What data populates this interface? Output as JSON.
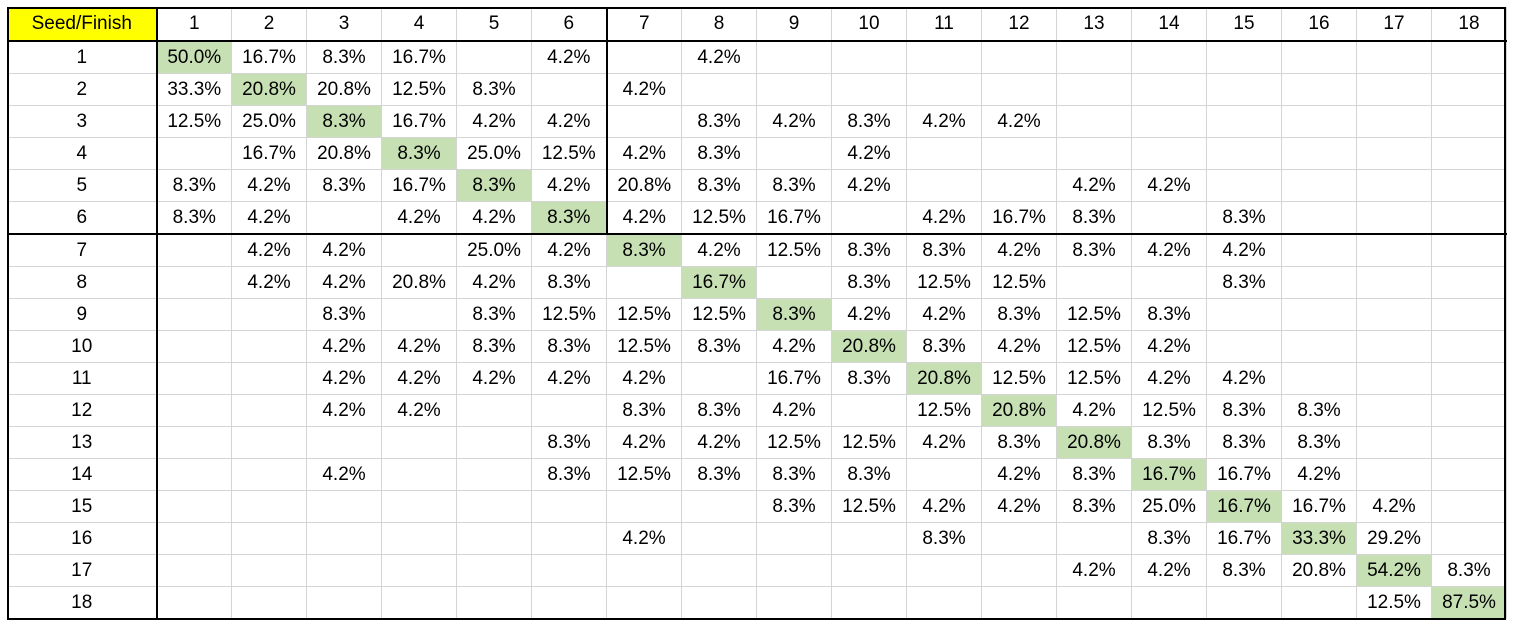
{
  "corner_label": "Seed/Finish",
  "colors": {
    "header_highlight": "#ffff00",
    "diagonal_fill": "#c6e0b4",
    "gridline": "#d4d4d4",
    "border": "#000000"
  },
  "finish_headers": [
    "1",
    "2",
    "3",
    "4",
    "5",
    "6",
    "7",
    "8",
    "9",
    "10",
    "11",
    "12",
    "13",
    "14",
    "15",
    "16",
    "17",
    "18"
  ],
  "rows": [
    {
      "seed": "1",
      "cells": [
        "50.0%",
        "16.7%",
        "8.3%",
        "16.7%",
        "",
        "4.2%",
        "",
        "4.2%",
        "",
        "",
        "",
        "",
        "",
        "",
        "",
        "",
        "",
        ""
      ]
    },
    {
      "seed": "2",
      "cells": [
        "33.3%",
        "20.8%",
        "20.8%",
        "12.5%",
        "8.3%",
        "",
        "4.2%",
        "",
        "",
        "",
        "",
        "",
        "",
        "",
        "",
        "",
        "",
        ""
      ]
    },
    {
      "seed": "3",
      "cells": [
        "12.5%",
        "25.0%",
        "8.3%",
        "16.7%",
        "4.2%",
        "4.2%",
        "",
        "8.3%",
        "4.2%",
        "8.3%",
        "4.2%",
        "4.2%",
        "",
        "",
        "",
        "",
        "",
        ""
      ]
    },
    {
      "seed": "4",
      "cells": [
        "",
        "16.7%",
        "20.8%",
        "8.3%",
        "25.0%",
        "12.5%",
        "4.2%",
        "8.3%",
        "",
        "4.2%",
        "",
        "",
        "",
        "",
        "",
        "",
        "",
        ""
      ]
    },
    {
      "seed": "5",
      "cells": [
        "8.3%",
        "4.2%",
        "8.3%",
        "16.7%",
        "8.3%",
        "4.2%",
        "20.8%",
        "8.3%",
        "8.3%",
        "4.2%",
        "",
        "",
        "4.2%",
        "4.2%",
        "",
        "",
        "",
        ""
      ]
    },
    {
      "seed": "6",
      "cells": [
        "8.3%",
        "4.2%",
        "",
        "4.2%",
        "4.2%",
        "8.3%",
        "4.2%",
        "12.5%",
        "16.7%",
        "",
        "4.2%",
        "16.7%",
        "8.3%",
        "",
        "8.3%",
        "",
        "",
        ""
      ]
    },
    {
      "seed": "7",
      "cells": [
        "",
        "4.2%",
        "4.2%",
        "",
        "25.0%",
        "4.2%",
        "8.3%",
        "4.2%",
        "12.5%",
        "8.3%",
        "8.3%",
        "4.2%",
        "8.3%",
        "4.2%",
        "4.2%",
        "",
        "",
        ""
      ]
    },
    {
      "seed": "8",
      "cells": [
        "",
        "4.2%",
        "4.2%",
        "20.8%",
        "4.2%",
        "8.3%",
        "",
        "16.7%",
        "",
        "8.3%",
        "12.5%",
        "12.5%",
        "",
        "",
        "8.3%",
        "",
        "",
        ""
      ]
    },
    {
      "seed": "9",
      "cells": [
        "",
        "",
        "8.3%",
        "",
        "8.3%",
        "12.5%",
        "12.5%",
        "12.5%",
        "8.3%",
        "4.2%",
        "4.2%",
        "8.3%",
        "12.5%",
        "8.3%",
        "",
        "",
        "",
        ""
      ]
    },
    {
      "seed": "10",
      "cells": [
        "",
        "",
        "4.2%",
        "4.2%",
        "8.3%",
        "8.3%",
        "12.5%",
        "8.3%",
        "4.2%",
        "20.8%",
        "8.3%",
        "4.2%",
        "12.5%",
        "4.2%",
        "",
        "",
        "",
        ""
      ]
    },
    {
      "seed": "11",
      "cells": [
        "",
        "",
        "4.2%",
        "4.2%",
        "4.2%",
        "4.2%",
        "4.2%",
        "",
        "16.7%",
        "8.3%",
        "20.8%",
        "12.5%",
        "12.5%",
        "4.2%",
        "4.2%",
        "",
        "",
        ""
      ]
    },
    {
      "seed": "12",
      "cells": [
        "",
        "",
        "4.2%",
        "4.2%",
        "",
        "",
        "8.3%",
        "8.3%",
        "4.2%",
        "",
        "12.5%",
        "20.8%",
        "4.2%",
        "12.5%",
        "8.3%",
        "8.3%",
        "",
        ""
      ]
    },
    {
      "seed": "13",
      "cells": [
        "",
        "",
        "",
        "",
        "",
        "8.3%",
        "4.2%",
        "4.2%",
        "12.5%",
        "12.5%",
        "4.2%",
        "8.3%",
        "20.8%",
        "8.3%",
        "8.3%",
        "8.3%",
        "",
        ""
      ]
    },
    {
      "seed": "14",
      "cells": [
        "",
        "",
        "4.2%",
        "",
        "",
        "8.3%",
        "12.5%",
        "8.3%",
        "8.3%",
        "8.3%",
        "",
        "4.2%",
        "8.3%",
        "16.7%",
        "16.7%",
        "4.2%",
        "",
        ""
      ]
    },
    {
      "seed": "15",
      "cells": [
        "",
        "",
        "",
        "",
        "",
        "",
        "",
        "",
        "8.3%",
        "12.5%",
        "4.2%",
        "4.2%",
        "8.3%",
        "25.0%",
        "16.7%",
        "16.7%",
        "4.2%",
        ""
      ]
    },
    {
      "seed": "16",
      "cells": [
        "",
        "",
        "",
        "",
        "",
        "",
        "4.2%",
        "",
        "",
        "",
        "8.3%",
        "",
        "",
        "8.3%",
        "16.7%",
        "33.3%",
        "29.2%",
        ""
      ]
    },
    {
      "seed": "17",
      "cells": [
        "",
        "",
        "",
        "",
        "",
        "",
        "",
        "",
        "",
        "",
        "",
        "",
        "4.2%",
        "4.2%",
        "8.3%",
        "20.8%",
        "54.2%",
        "8.3%"
      ]
    },
    {
      "seed": "18",
      "cells": [
        "",
        "",
        "",
        "",
        "",
        "",
        "",
        "",
        "",
        "",
        "",
        "",
        "",
        "",
        "",
        "",
        "12.5%",
        "87.5%"
      ]
    }
  ]
}
